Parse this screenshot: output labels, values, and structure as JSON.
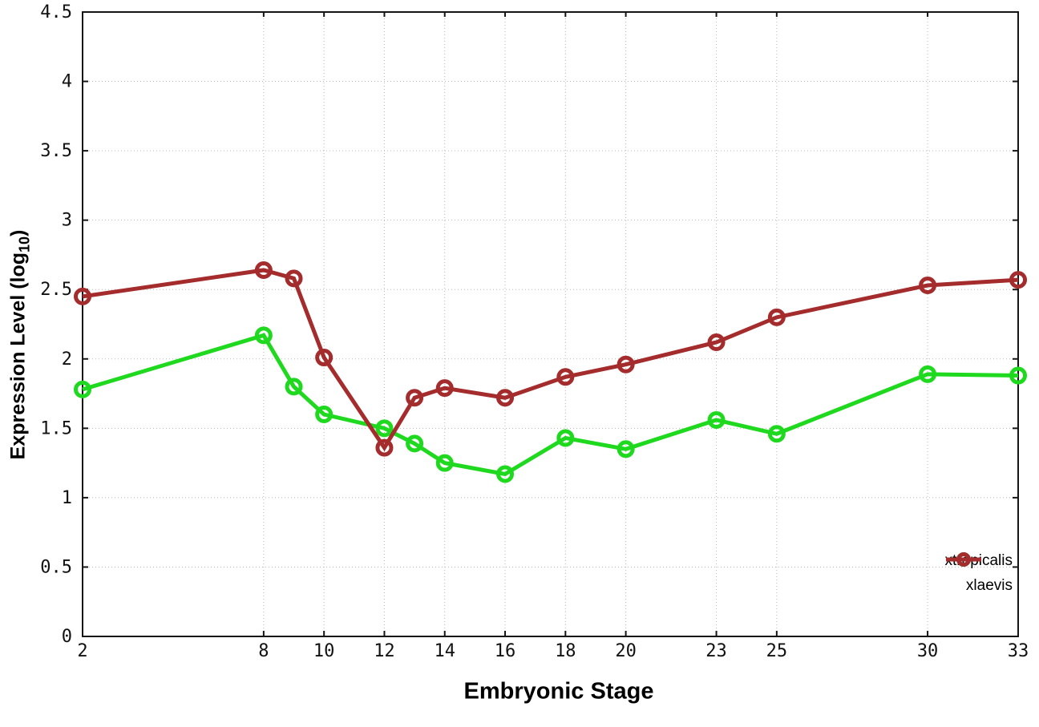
{
  "chart_data": {
    "type": "line",
    "title": "",
    "xlabel": "Embryonic Stage",
    "ylabel": "Expression Level (log10)",
    "ylabel_rich": {
      "pre": "Expression Level (log",
      "sub": "10",
      "post": ")"
    },
    "xlim": [
      2,
      33
    ],
    "ylim": [
      0,
      4.5
    ],
    "grid": true,
    "marker": "open-circle",
    "legend_position": "inside-bottom-right",
    "x": [
      2,
      8,
      9,
      10,
      12,
      13,
      14,
      16,
      18,
      20,
      23,
      25,
      30,
      33
    ],
    "xticks": [
      2,
      8,
      10,
      12,
      14,
      16,
      18,
      20,
      23,
      25,
      30,
      33
    ],
    "yticks": [
      0,
      0.5,
      1,
      1.5,
      2,
      2.5,
      3,
      3.5,
      4,
      4.5
    ],
    "ytick_labels": [
      "0",
      "0.5",
      "1",
      "1.5",
      "2",
      "2.5",
      "3",
      "3.5",
      "4",
      "4.5"
    ],
    "series": [
      {
        "name": "xtropicalis",
        "color": "#1fd91f",
        "values": [
          1.78,
          2.17,
          1.8,
          1.6,
          1.5,
          1.39,
          1.25,
          1.17,
          1.43,
          1.35,
          1.56,
          1.46,
          1.89,
          1.88
        ]
      },
      {
        "name": "xlaevis",
        "color": "#a42c2c",
        "values": [
          2.45,
          2.64,
          2.58,
          2.01,
          1.36,
          1.72,
          1.79,
          1.72,
          1.87,
          1.96,
          2.12,
          2.3,
          2.53,
          2.57
        ]
      }
    ]
  }
}
